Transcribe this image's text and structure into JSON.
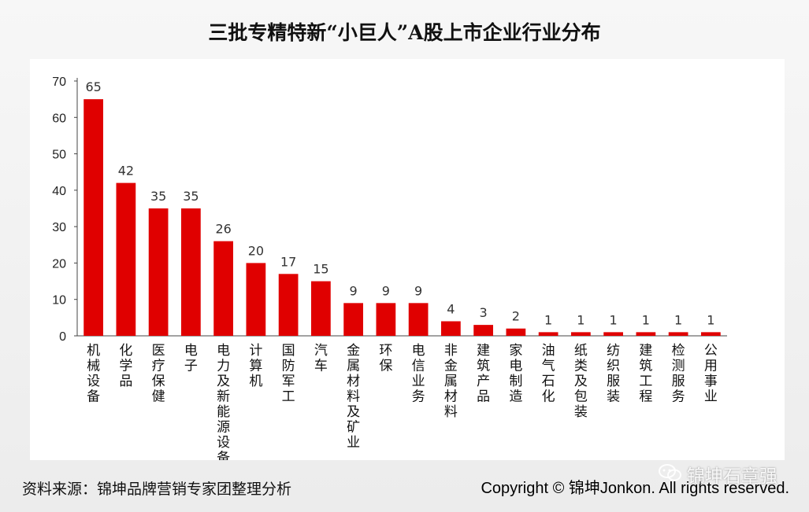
{
  "title": "三批专精特新“小巨人”A股上市企业行业分布",
  "source": "资料来源：锦坤品牌营销专家团整理分析",
  "copyright": "Copyright © 锦坤Jonkon. All rights reserved.",
  "watermark": {
    "text": "锦坤石章强",
    "icon": "wechat-icon"
  },
  "chart_data": {
    "type": "bar",
    "categories": [
      "机械设备",
      "化学品",
      "医疗保健",
      "电子",
      "电力及新能源设备",
      "计算机",
      "国防军工",
      "汽车",
      "金属材料及矿业",
      "环保",
      "电信业务",
      "非金属材料",
      "建筑产品",
      "家电制造",
      "油气石化",
      "纸类及包装",
      "纺织服装",
      "建筑工程",
      "检测服务",
      "公用事业"
    ],
    "values": [
      65,
      42,
      35,
      35,
      26,
      20,
      17,
      15,
      9,
      9,
      9,
      4,
      3,
      2,
      1,
      1,
      1,
      1,
      1,
      1
    ],
    "ylim": [
      0,
      70
    ],
    "yticks": [
      0,
      10,
      20,
      30,
      40,
      50,
      60,
      70
    ],
    "bar_color": "#e00000",
    "data_labels": true,
    "grid": false
  }
}
